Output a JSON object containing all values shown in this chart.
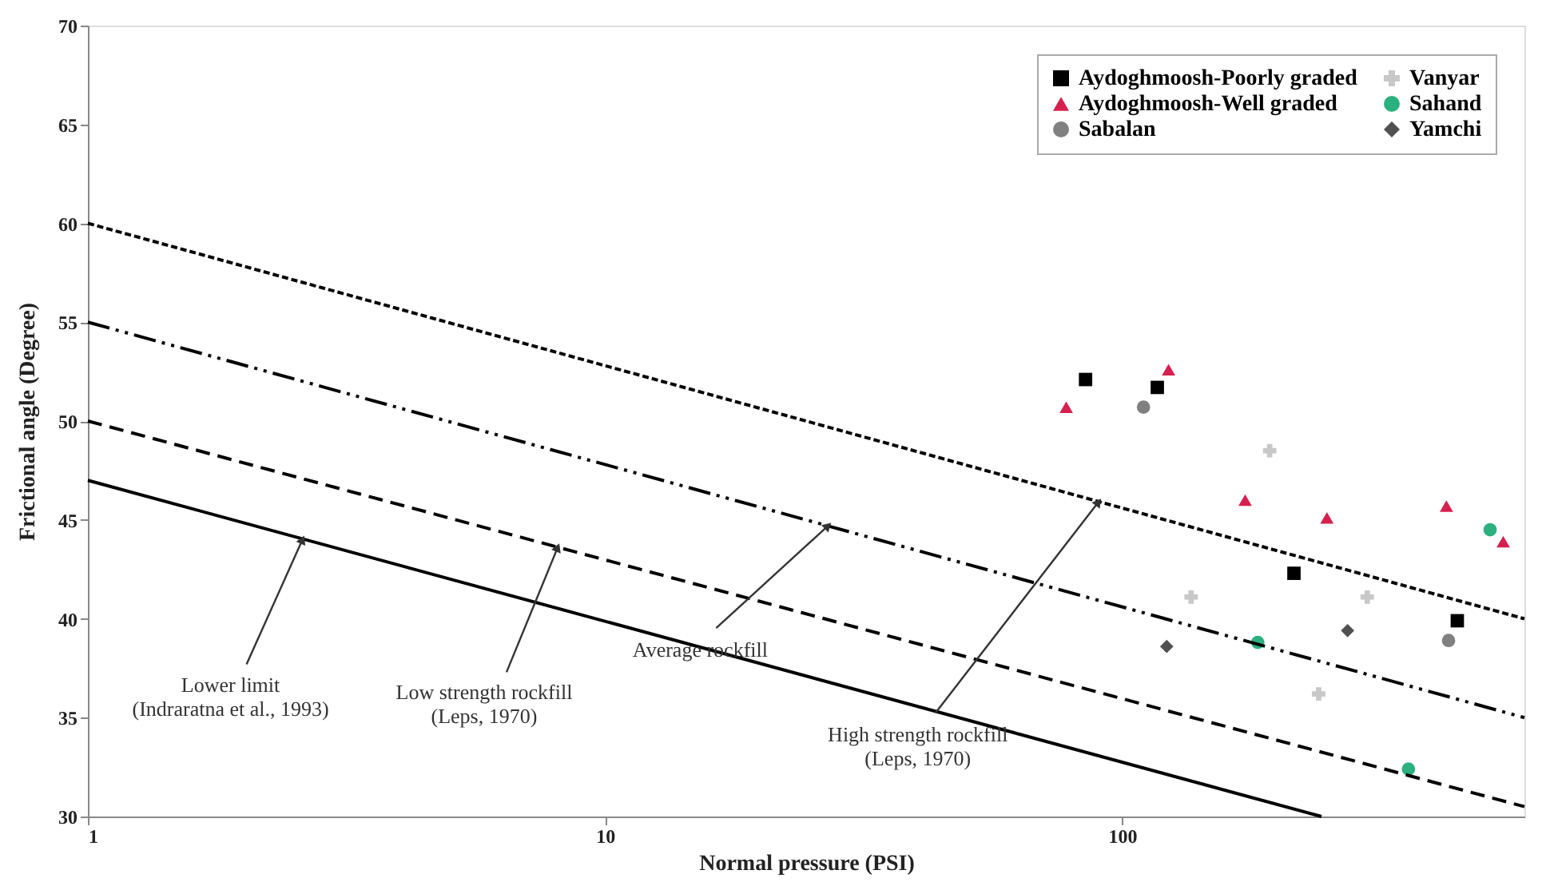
{
  "chart_data": {
    "type": "scatter",
    "xlabel": "Normal pressure (PSI)",
    "ylabel": "Frictional angle (Degree)",
    "log": "x",
    "xlim": [
      1,
      600
    ],
    "xticks": [
      1,
      10,
      100
    ],
    "ylim": [
      30,
      70
    ],
    "yticks": [
      30,
      35,
      40,
      45,
      50,
      55,
      60,
      65,
      70
    ],
    "grid": false,
    "legend": "top right",
    "series": [
      {
        "name": "Aydoghmoosh-Poorly graded",
        "color": "#000000",
        "marker": "square",
        "x": [
          85,
          117,
          215,
          445
        ],
        "values": [
          52.1,
          51.7,
          42.3,
          39.9
        ]
      },
      {
        "name": "Aydoghmoosh-Well graded",
        "color": "#d6204e",
        "marker": "triangle",
        "x": [
          78,
          123,
          173,
          249,
          424,
          546
        ],
        "values": [
          50.7,
          52.6,
          46.0,
          45.1,
          45.7,
          43.9
        ]
      },
      {
        "name": "Sabalan",
        "color": "#808080",
        "marker": "circle",
        "x": [
          110,
          428
        ],
        "values": [
          50.7,
          38.9
        ]
      },
      {
        "name": "Vanyar",
        "color": "#c8c8c8",
        "marker": "cross",
        "x": [
          193,
          136,
          298,
          240
        ],
        "values": [
          48.5,
          41.1,
          41.1,
          36.2
        ]
      },
      {
        "name": "Sahand",
        "color": "#2bb07f",
        "marker": "circle",
        "x": [
          515,
          183,
          358
        ],
        "values": [
          44.5,
          38.8,
          32.4
        ]
      },
      {
        "name": "Yamchi",
        "color": "#505050",
        "marker": "diamond",
        "x": [
          122,
          273
        ],
        "values": [
          38.6,
          39.4
        ]
      },
      {
        "type": "line",
        "color": "#000000",
        "line_style": "dotted",
        "x": [
          1,
          600
        ],
        "values": [
          60,
          40
        ]
      },
      {
        "type": "line",
        "color": "#000000",
        "line_style": "dashdot",
        "x": [
          1,
          600
        ],
        "values": [
          55,
          35
        ]
      },
      {
        "type": "line",
        "color": "#000000",
        "line_style": "dashed",
        "x": [
          1,
          600
        ],
        "values": [
          50,
          30.5
        ]
      },
      {
        "type": "line",
        "color": "#000000",
        "line_style": "solid",
        "x": [
          1,
          243
        ],
        "values": [
          47,
          30
        ]
      }
    ],
    "annotations": [
      {
        "text": "Lower limit\n(Indraratna et al., 1993)",
        "x": 2.6,
        "y": 44
      },
      {
        "text": "Low strength rockfill\n(Leps, 1970)",
        "x": 8.1,
        "y": 43.6
      },
      {
        "text": "Average rockfill",
        "x": 27,
        "y": 44.7
      },
      {
        "text": "High strength rockfill\n(Leps, 1970)",
        "x": 90,
        "y": 45.9
      }
    ]
  }
}
